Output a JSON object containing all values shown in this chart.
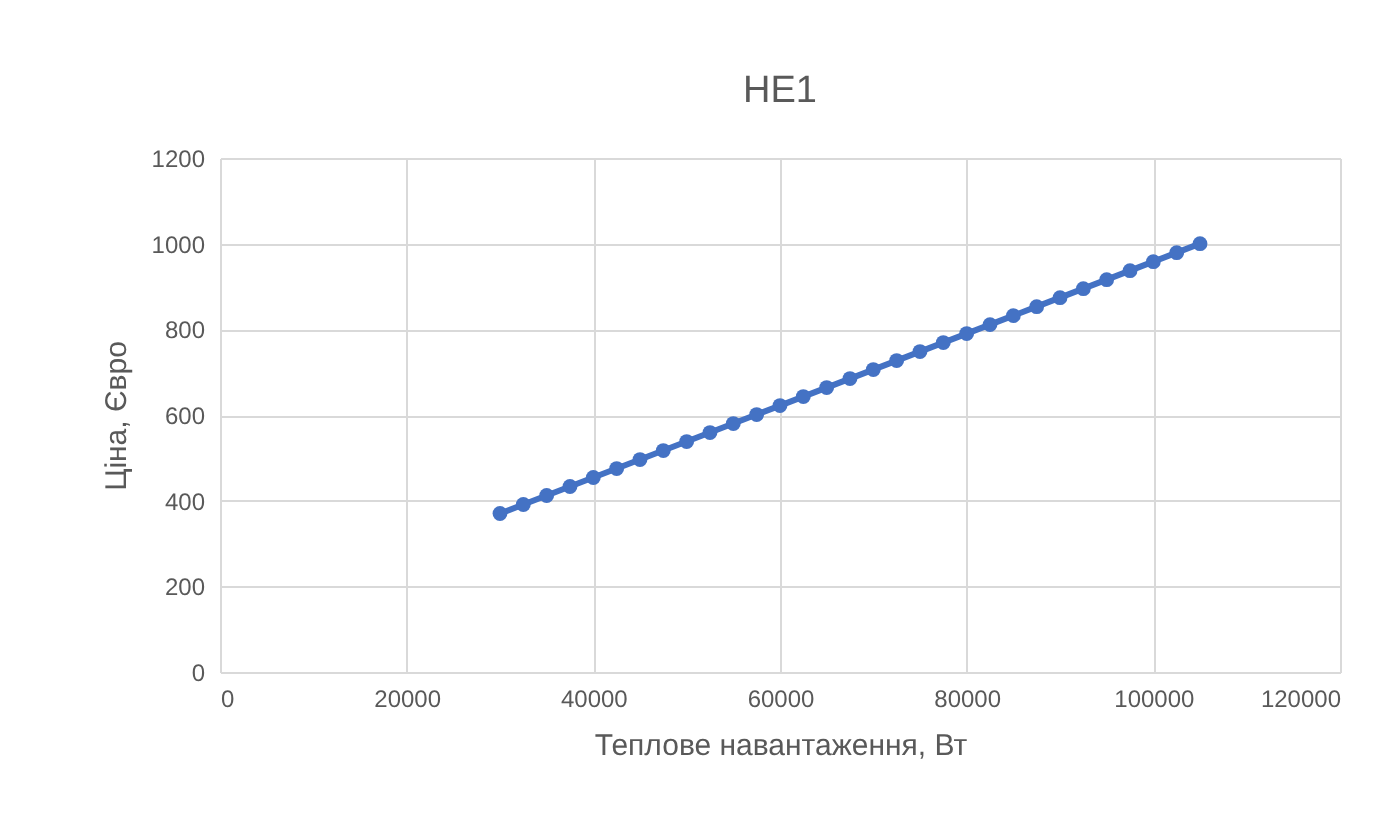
{
  "chart_data": {
    "type": "line",
    "title": "HE1",
    "xlabel": "Теплове навантаження, Вт",
    "ylabel": "Ціна, Євро",
    "x": [
      30000,
      32500,
      35000,
      37500,
      40000,
      42500,
      45000,
      47500,
      50000,
      52500,
      55000,
      57500,
      60000,
      62500,
      65000,
      67500,
      70000,
      72500,
      75000,
      77500,
      80000,
      82500,
      85000,
      87500,
      90000,
      92500,
      95000,
      97500,
      100000,
      102500,
      105000
    ],
    "series": [
      {
        "color": "#4472c4",
        "values": [
          370,
          391,
          412,
          433,
          454,
          475,
          496,
          517,
          538,
          559,
          580,
          601,
          622,
          643,
          664,
          685,
          706,
          727,
          748,
          769,
          790,
          811,
          832,
          853,
          874,
          895,
          916,
          937,
          958,
          979,
          1000
        ]
      }
    ],
    "xlim": [
      0,
      120000
    ],
    "xticks": [
      0,
      20000,
      40000,
      60000,
      80000,
      100000,
      120000
    ],
    "ylim": [
      0,
      1200
    ],
    "yticks": [
      0,
      200,
      400,
      600,
      800,
      1000,
      1200
    ],
    "grid": true,
    "legend": false,
    "marker": "circle",
    "line_style": "solid"
  }
}
